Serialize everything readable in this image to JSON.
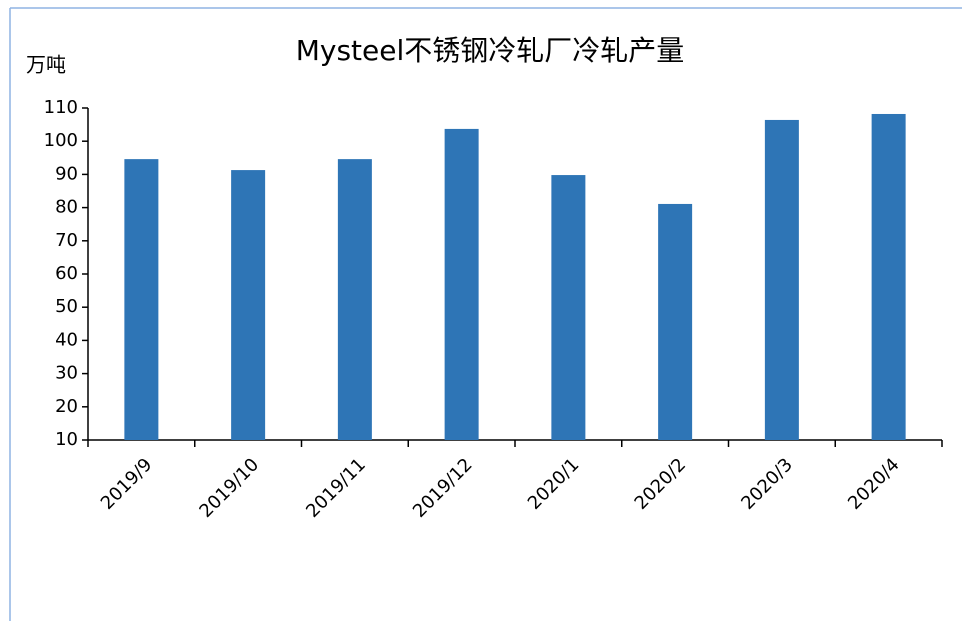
{
  "chart_data": {
    "type": "bar",
    "title": "Mysteel不锈钢冷轧厂冷轧产量",
    "y_label": "万吨",
    "categories": [
      "2019/9",
      "2019/10",
      "2019/11",
      "2019/12",
      "2020/1",
      "2020/2",
      "2020/3",
      "2020/4"
    ],
    "values": [
      94.6,
      91.3,
      94.6,
      103.7,
      89.8,
      81.1,
      106.4,
      108.2
    ],
    "color": "#2e75b6",
    "ylim": [
      10,
      110
    ],
    "yticks": [
      10,
      20,
      30,
      40,
      50,
      60,
      70,
      80,
      90,
      100,
      110
    ],
    "grid": false
  }
}
